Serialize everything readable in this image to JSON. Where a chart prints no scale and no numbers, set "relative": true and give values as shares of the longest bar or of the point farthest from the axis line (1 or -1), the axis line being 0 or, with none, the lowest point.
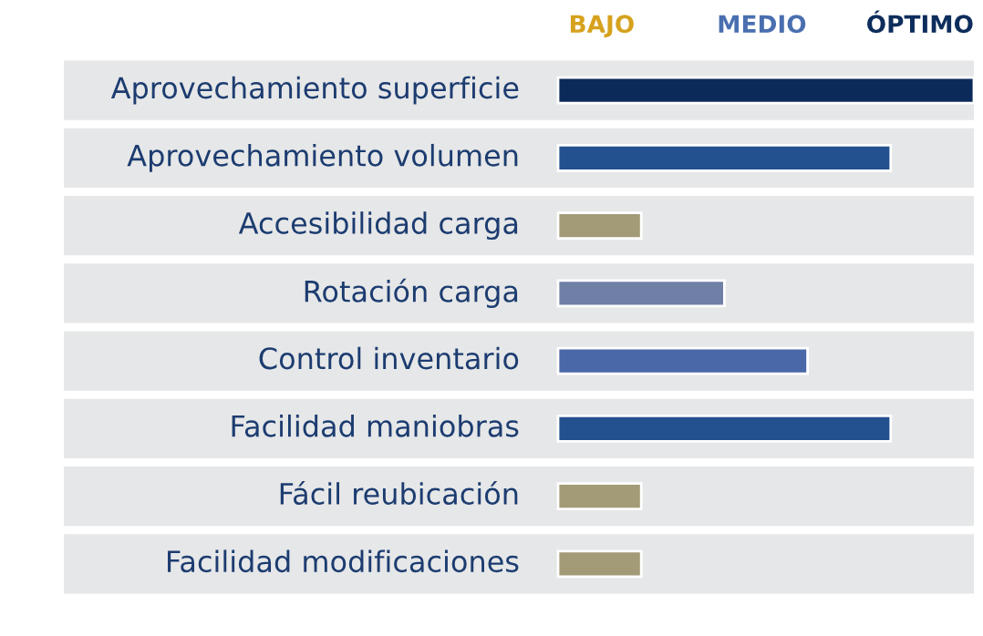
{
  "chart_data": {
    "type": "bar",
    "orientation": "horizontal",
    "relative": true,
    "categories": [
      "Aprovechamiento superficie",
      "Aprovechamiento volumen",
      "Accesibilidad carga",
      "Rotación carga",
      "Control inventario",
      "Facilidad maniobras",
      "Fácil reubicación",
      "Facilidad modificaciones"
    ],
    "values": [
      1,
      0.8,
      0.2,
      0.4,
      0.6,
      0.8,
      0.2,
      0.2
    ],
    "colors": [
      "#0b2a5a",
      "#23508f",
      "#a39a78",
      "#6f7fa6",
      "#4a68a8",
      "#23508f",
      "#a39a78",
      "#a39a78"
    ],
    "annotations": [
      "BAJO",
      "MEDIO",
      "ÓPTIMO"
    ],
    "legend": false
  }
}
